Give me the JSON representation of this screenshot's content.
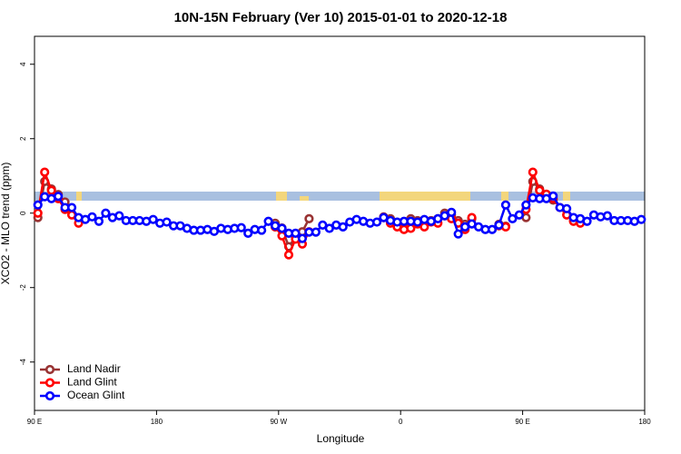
{
  "chart_data": {
    "type": "line",
    "title": "10N-15N February (Ver 10)   2015-01-01 to 2020-12-18",
    "x_label": "Longitude",
    "y_label": "XCO2 - MLO trend (ppm)",
    "xlim": [
      90,
      540
    ],
    "ylim": [
      -5.3,
      4.75
    ],
    "xticks": [
      {
        "value": 90,
        "label": "90 E"
      },
      180,
      {
        "value": 270,
        "label": "90 W"
      },
      {
        "value": 360,
        "label": "0"
      },
      {
        "value": 450,
        "label": "90 E"
      },
      {
        "value": 540,
        "label": "180"
      }
    ],
    "yticks": [
      -4,
      -2,
      0,
      2,
      4
    ],
    "legend": "bottom-left",
    "x": [
      92.5,
      97.5,
      102.5,
      107.5,
      112.5,
      117.5,
      122.5,
      127.5,
      132.5,
      137.5,
      142.5,
      147.5,
      152.5,
      157.5,
      162.5,
      167.5,
      172.5,
      177.5,
      182.5,
      187.5,
      192.5,
      197.5,
      202.5,
      207.5,
      212.5,
      217.5,
      222.5,
      227.5,
      232.5,
      237.5,
      242.5,
      247.5,
      252.5,
      257.5,
      262.5,
      267.5,
      272.5,
      277.5,
      282.5,
      287.5,
      292.5,
      297.5,
      302.5,
      307.5,
      312.5,
      317.5,
      322.5,
      327.5,
      332.5,
      337.5,
      342.5,
      347.5,
      352.5,
      357.5,
      362.5,
      367.5,
      372.5,
      377.5,
      382.5,
      387.5,
      392.5,
      397.5,
      402.5,
      407.5,
      412.5,
      417.5,
      422.5,
      427.5,
      432.5,
      437.5,
      442.5,
      447.5,
      452.5,
      457.5,
      462.5,
      467.5,
      472.5,
      477.5,
      482.5,
      487.5,
      492.5,
      497.5,
      502.5,
      507.5,
      512.5,
      517.5,
      522.5,
      527.5,
      532.5,
      537.5
    ],
    "series": [
      {
        "name": "Land Nadir",
        "color": "#993333",
        "values": [
          -0.12,
          0.85,
          0.65,
          0.5,
          0.3,
          null,
          null,
          null,
          null,
          null,
          null,
          null,
          null,
          null,
          null,
          null,
          null,
          null,
          null,
          null,
          null,
          null,
          null,
          null,
          null,
          null,
          null,
          null,
          null,
          null,
          null,
          null,
          null,
          null,
          null,
          -0.27,
          -0.4,
          -0.9,
          -0.65,
          -0.5,
          -0.15,
          null,
          null,
          null,
          null,
          null,
          null,
          null,
          null,
          null,
          null,
          -0.1,
          -0.15,
          -0.25,
          -0.3,
          -0.15,
          -0.2,
          -0.25,
          -0.2,
          -0.15,
          0.0,
          -0.05,
          -0.2,
          -0.3,
          -0.15,
          null,
          null,
          null,
          -0.3,
          -0.35,
          null,
          null,
          -0.12,
          0.85,
          0.65,
          0.5,
          0.35,
          null,
          null,
          null,
          null,
          null,
          null,
          null,
          null,
          null,
          null,
          null,
          null,
          null
        ]
      },
      {
        "name": "Land Glint",
        "color": "#ff0000",
        "values": [
          0.0,
          1.1,
          0.61,
          0.39,
          0.1,
          -0.05,
          -0.27,
          null,
          null,
          null,
          null,
          null,
          null,
          null,
          null,
          null,
          null,
          null,
          null,
          null,
          null,
          null,
          null,
          null,
          null,
          null,
          null,
          null,
          null,
          null,
          null,
          null,
          null,
          null,
          null,
          -0.37,
          -0.61,
          -1.12,
          -0.7,
          -0.83,
          -0.5,
          null,
          null,
          null,
          null,
          null,
          null,
          null,
          null,
          null,
          null,
          -0.12,
          -0.27,
          -0.37,
          -0.44,
          -0.41,
          -0.29,
          -0.37,
          -0.24,
          -0.27,
          -0.07,
          -0.15,
          -0.27,
          -0.44,
          -0.12,
          null,
          null,
          null,
          -0.34,
          -0.37,
          null,
          null,
          0.1,
          1.1,
          0.61,
          0.51,
          0.39,
          0.15,
          -0.05,
          -0.22,
          -0.27,
          null,
          null,
          null,
          null,
          null,
          null,
          null,
          null,
          null
        ]
      },
      {
        "name": "Ocean Glint",
        "color": "#0000ff",
        "values": [
          0.22,
          0.44,
          0.39,
          0.45,
          0.15,
          0.15,
          -0.12,
          -0.17,
          -0.1,
          -0.22,
          0,
          -0.12,
          -0.07,
          -0.2,
          -0.2,
          -0.2,
          -0.22,
          -0.17,
          -0.27,
          -0.24,
          -0.34,
          -0.34,
          -0.41,
          -0.46,
          -0.46,
          -0.44,
          -0.49,
          -0.41,
          -0.44,
          -0.41,
          -0.39,
          -0.54,
          -0.44,
          -0.46,
          -0.22,
          -0.34,
          -0.41,
          -0.54,
          -0.54,
          -0.68,
          -0.51,
          -0.51,
          -0.32,
          -0.41,
          -0.32,
          -0.37,
          -0.24,
          -0.17,
          -0.22,
          -0.27,
          -0.24,
          -0.12,
          -0.2,
          -0.24,
          -0.22,
          -0.22,
          -0.24,
          -0.17,
          -0.22,
          -0.15,
          -0.07,
          0.02,
          -0.56,
          -0.37,
          -0.29,
          -0.37,
          -0.44,
          -0.44,
          -0.32,
          0.22,
          -0.15,
          -0.05,
          0.22,
          0.41,
          0.39,
          0.39,
          0.46,
          0.15,
          0.12,
          -0.12,
          -0.15,
          -0.22,
          -0.05,
          -0.1,
          -0.07,
          -0.2,
          -0.2,
          -0.2,
          -0.22,
          -0.17
        ]
      }
    ]
  }
}
